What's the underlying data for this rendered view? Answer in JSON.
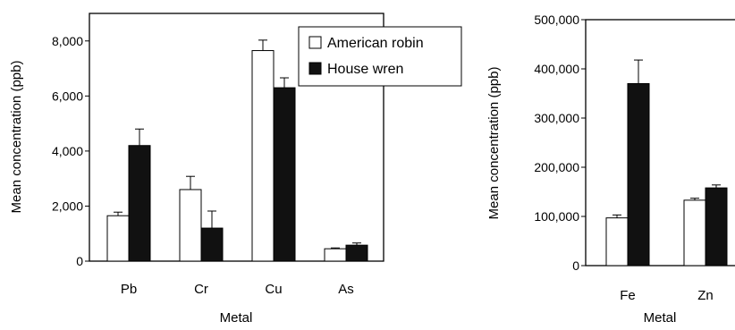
{
  "chart_data": [
    {
      "type": "bar",
      "categories": [
        "Pb",
        "Cr",
        "Cu",
        "As"
      ],
      "xlabel": "Metal",
      "ylabel": "Mean concentration (ppb)",
      "ylim": [
        0,
        9000
      ],
      "yticks": [
        0,
        2000,
        4000,
        6000,
        8000
      ],
      "ytick_labels": [
        "0",
        "2,000",
        "4,000",
        "6,000",
        "8,000"
      ],
      "legend_position": "top-right",
      "series": [
        {
          "name": "American robin",
          "values": [
            1650,
            2600,
            7650,
            450
          ],
          "errors": [
            130,
            480,
            380,
            30
          ],
          "color": "#ffffff"
        },
        {
          "name": "House wren",
          "values": [
            4200,
            1200,
            6300,
            580
          ],
          "errors": [
            600,
            620,
            360,
            80
          ],
          "color": "#111111"
        }
      ]
    },
    {
      "type": "bar",
      "categories": [
        "Fe",
        "Zn"
      ],
      "xlabel": "Metal",
      "ylabel": "Mean concentration (ppb)",
      "ylim": [
        0,
        500000
      ],
      "yticks": [
        0,
        100000,
        200000,
        300000,
        400000,
        500000
      ],
      "ytick_labels": [
        "0",
        "100,000",
        "200,000",
        "300,000",
        "400,000",
        "500,000"
      ],
      "series": [
        {
          "name": "American robin",
          "values": [
            97000,
            133000
          ],
          "errors": [
            6000,
            4000
          ],
          "color": "#ffffff"
        },
        {
          "name": "House wren",
          "values": [
            370000,
            158000
          ],
          "errors": [
            48000,
            6000
          ],
          "color": "#111111"
        }
      ]
    }
  ]
}
